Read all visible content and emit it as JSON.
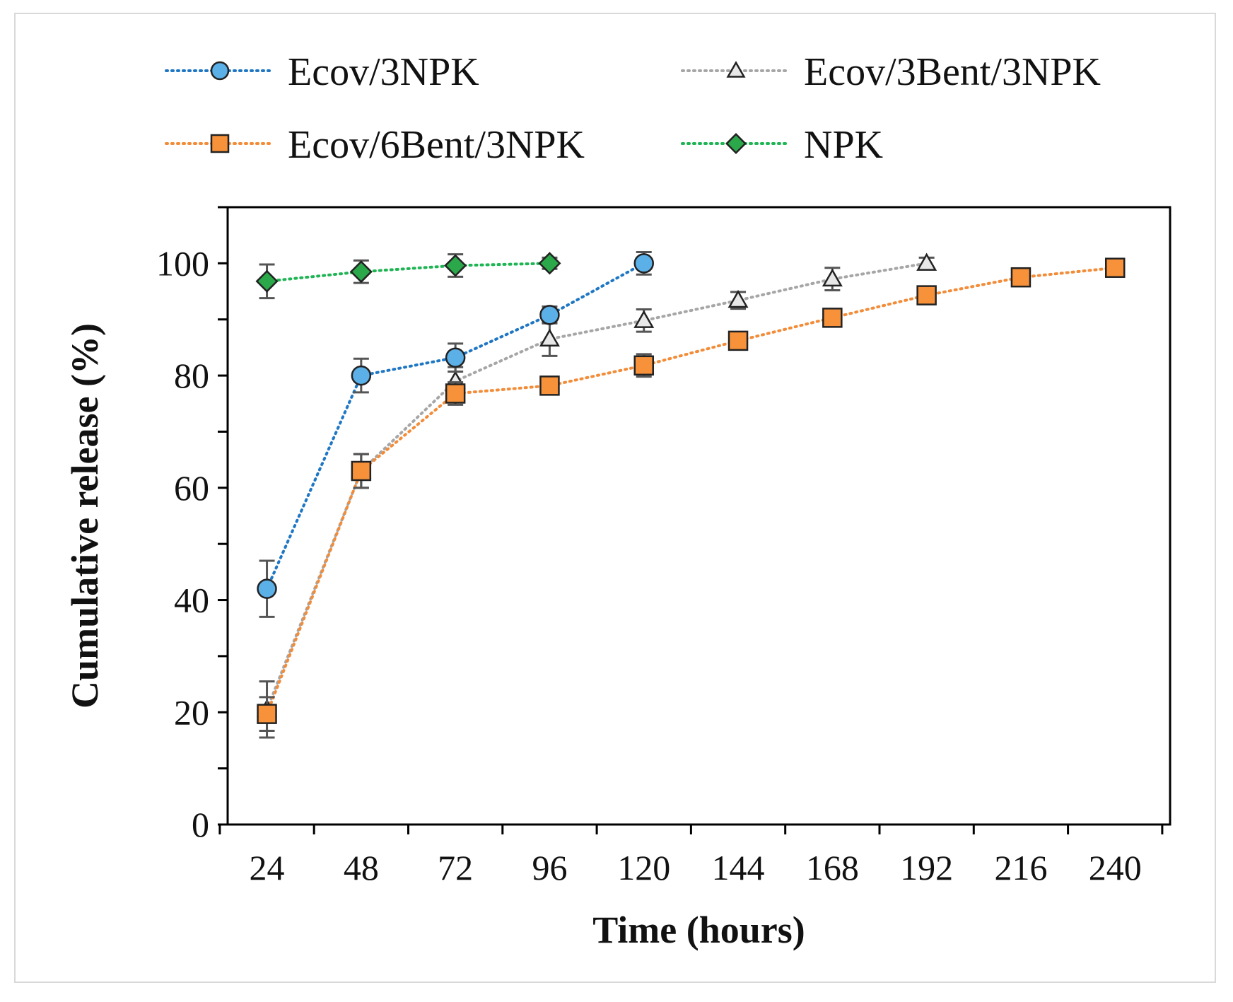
{
  "chart_data": {
    "type": "line",
    "title": "",
    "xlabel": "Time (hours)",
    "ylabel": "Cumulative release (%)",
    "xlim": [
      14,
      254
    ],
    "ylim": [
      0,
      110
    ],
    "x_ticks": [
      24,
      48,
      72,
      96,
      120,
      144,
      168,
      192,
      216,
      240
    ],
    "y_ticks": [
      0,
      20,
      40,
      60,
      80,
      100
    ],
    "grid": false,
    "legend_position": "top",
    "series": [
      {
        "name": "Ecov/3NPK",
        "marker": "circle",
        "color": "#1f77c4",
        "marker_color": "#5bb0e8",
        "x": [
          24,
          48,
          72,
          96,
          120
        ],
        "values": [
          42,
          80,
          83.2,
          90.8,
          100
        ],
        "errors": [
          5,
          3,
          2.5,
          1.5,
          2
        ]
      },
      {
        "name": "Ecov/3Bent/3NPK",
        "marker": "triangle",
        "color": "#a6a6a6",
        "marker_color": "#e8e8e8",
        "x": [
          24,
          48,
          72,
          96,
          120,
          144,
          168,
          192
        ],
        "values": [
          20.5,
          63,
          79,
          86.5,
          89.8,
          93.4,
          97.2,
          100
        ],
        "errors": [
          5,
          3,
          2.5,
          3,
          2,
          1.5,
          2,
          1
        ]
      },
      {
        "name": "Ecov/6Bent/3NPK",
        "marker": "square",
        "color": "#f28c38",
        "marker_color": "#f7923a",
        "x": [
          24,
          48,
          72,
          96,
          120,
          144,
          168,
          192,
          216,
          240
        ],
        "values": [
          19.7,
          63,
          76.8,
          78.2,
          81.8,
          86.2,
          90.3,
          94.3,
          97.5,
          99.2
        ],
        "errors": [
          3,
          3,
          2,
          1,
          2,
          1.5,
          1.5,
          1,
          1,
          1
        ]
      },
      {
        "name": "NPK",
        "marker": "diamond",
        "color": "#1fb454",
        "marker_color": "#2aa84a",
        "x": [
          24,
          48,
          72,
          96
        ],
        "values": [
          96.8,
          98.5,
          99.6,
          100
        ],
        "errors": [
          3,
          2,
          2,
          1
        ]
      }
    ]
  }
}
